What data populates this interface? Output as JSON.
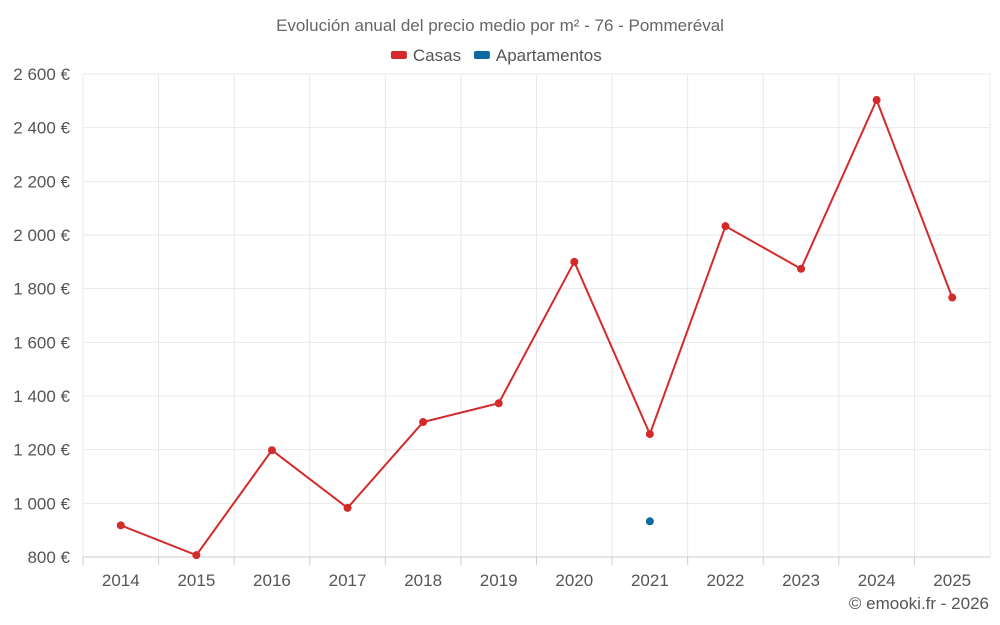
{
  "chart_data": {
    "type": "line",
    "title": "Evolución anual del precio medio por m² - 76 - Pommeréval",
    "categories": [
      "2014",
      "2015",
      "2016",
      "2017",
      "2018",
      "2019",
      "2020",
      "2021",
      "2022",
      "2023",
      "2024",
      "2025"
    ],
    "series": [
      {
        "name": "Casas",
        "color": "#d42a2a",
        "values": [
          918,
          807,
          1198,
          983,
          1303,
          1373,
          1900,
          1258,
          2033,
          1874,
          2503,
          1767
        ]
      },
      {
        "name": "Apartamentos",
        "color": "#0a6aa1",
        "values": [
          null,
          null,
          null,
          null,
          null,
          null,
          null,
          933,
          null,
          null,
          null,
          null
        ]
      }
    ],
    "y_ticks": [
      "800 €",
      "1 000 €",
      "1 200 €",
      "1 400 €",
      "1 600 €",
      "1 800 €",
      "2 000 €",
      "2 200 €",
      "2 400 €",
      "2 600 €"
    ],
    "ylim": [
      800,
      2600
    ],
    "grid": true,
    "legend": "top-center",
    "credit": "© emooki.fr - 2026"
  }
}
